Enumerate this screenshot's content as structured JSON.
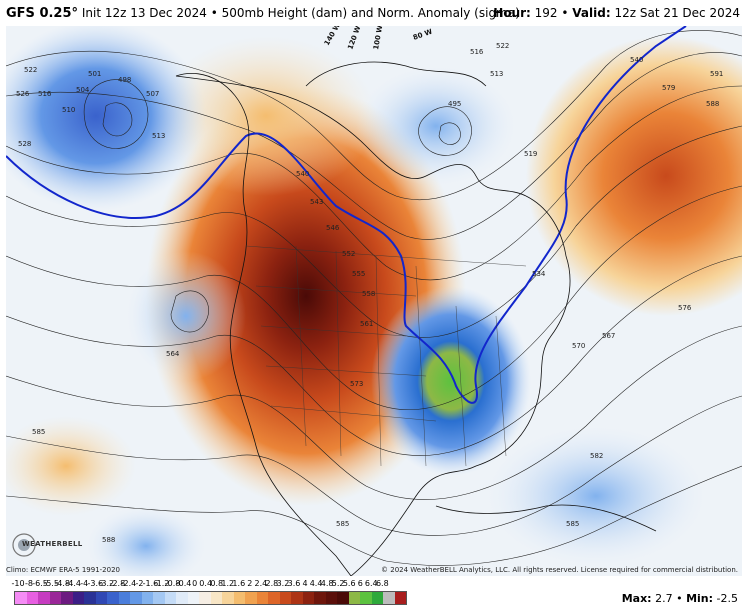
{
  "header": {
    "model": "GFS 0.25°",
    "init": "Init 12z 13 Dec 2024",
    "product": "500mb Height (dam) and Norm. Anomaly (sigma)",
    "hour_label": "Hour:",
    "hour_value": "192",
    "valid_label": "Valid:",
    "valid_value": "12z Sat 21 Dec 2024"
  },
  "footer": {
    "climo": "Climo: ECMWF ERA-5 1991-2020",
    "copyright": "© 2024 WeatherBELL Analytics, LLC. All rights reserved. License required for commercial distribution.",
    "logo_text": "WEATHERBELL",
    "max_label": "Max:",
    "max_value": "2.7",
    "min_label": "Min:",
    "min_value": "-2.5"
  },
  "colorbar": {
    "labels": [
      "-10",
      "-8",
      "-6.5",
      "-5.5",
      "-4.8",
      "-4.4",
      "-4",
      "-3.6",
      "-3.2",
      "-2.8",
      "-2.4",
      "-2",
      "-1.6",
      "-1.2",
      "-0.8",
      "-0.4",
      "0",
      "0.4",
      "0.8",
      "1.2",
      "1.6",
      "2",
      "2.4",
      "2.8",
      "3.2",
      "3.6",
      "4",
      "4.4",
      "4.8",
      "5.2",
      "5.6",
      "6",
      "6.4",
      "6.8"
    ],
    "colors": [
      "#f58cf5",
      "#e75fe1",
      "#c63cc0",
      "#9a2798",
      "#6c1a80",
      "#3b1e86",
      "#2a3296",
      "#3048b4",
      "#3a62cc",
      "#4b7edb",
      "#6398e6",
      "#82b2ee",
      "#a4c8f3",
      "#c5dcf7",
      "#e0ebf8",
      "#eef3f8",
      "#f6eee4",
      "#f8e6c6",
      "#f7d49a",
      "#f4bd6f",
      "#f0a250",
      "#ea8438",
      "#dd6528",
      "#c84a1c",
      "#ad3415",
      "#8c2210",
      "#6e160c",
      "#5b0f0a",
      "#4a0a07",
      "#8db846",
      "#5cc23f",
      "#2ea93b",
      "#bdbdbd",
      "#a81e1e"
    ],
    "swatches_note": ""
  },
  "map": {
    "contour_labels": [
      "526",
      "522",
      "516",
      "510",
      "504",
      "501",
      "498",
      "507",
      "513",
      "528",
      "540",
      "543",
      "546",
      "552",
      "555",
      "558",
      "561",
      "564",
      "567",
      "570",
      "573",
      "576",
      "579",
      "582",
      "585",
      "588",
      "591",
      "534",
      "519",
      "495",
      "513",
      "516",
      "522",
      "540",
      "585",
      "585",
      "588"
    ],
    "feature_labels": [
      "140 W",
      "120 W",
      "100 W",
      "80 W"
    ]
  }
}
